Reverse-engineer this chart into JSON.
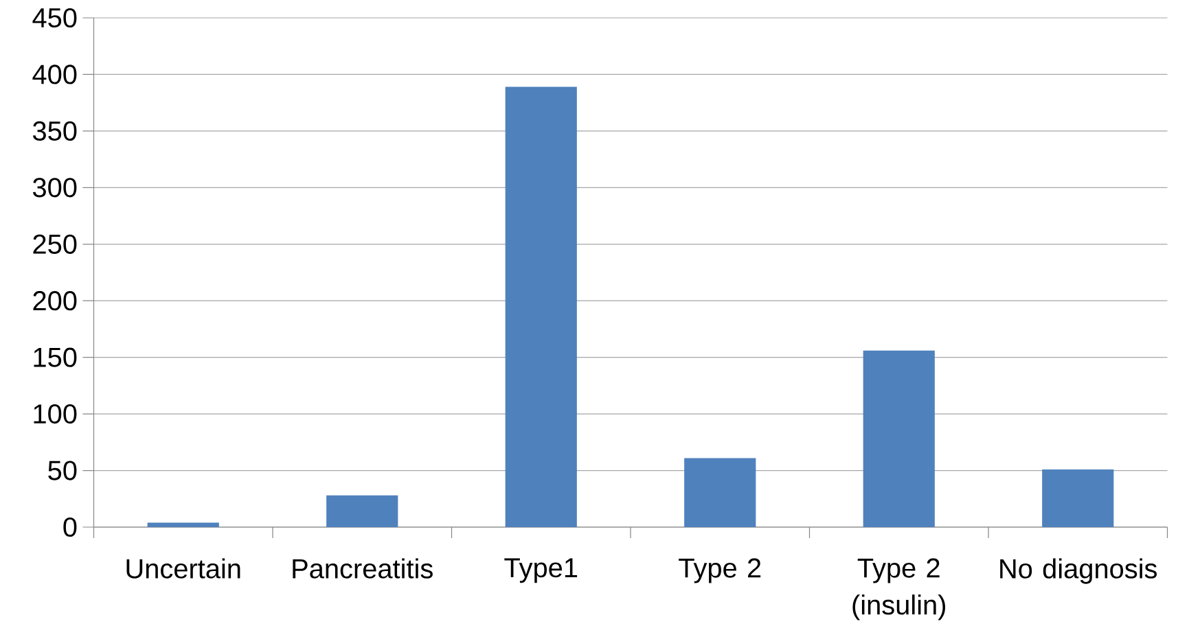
{
  "chart_data": {
    "type": "bar",
    "categories": [
      "Uncertain",
      "Pancreatitis",
      "Type1",
      "Type 2",
      "Type 2 (insulin)",
      "No diagnosis"
    ],
    "values": [
      4,
      28,
      389,
      61,
      156,
      51
    ],
    "color": "#4f81bd",
    "ylim": [
      0,
      450
    ],
    "yticks": [
      0,
      50,
      100,
      150,
      200,
      250,
      300,
      350,
      400,
      450
    ],
    "grid": "y"
  }
}
